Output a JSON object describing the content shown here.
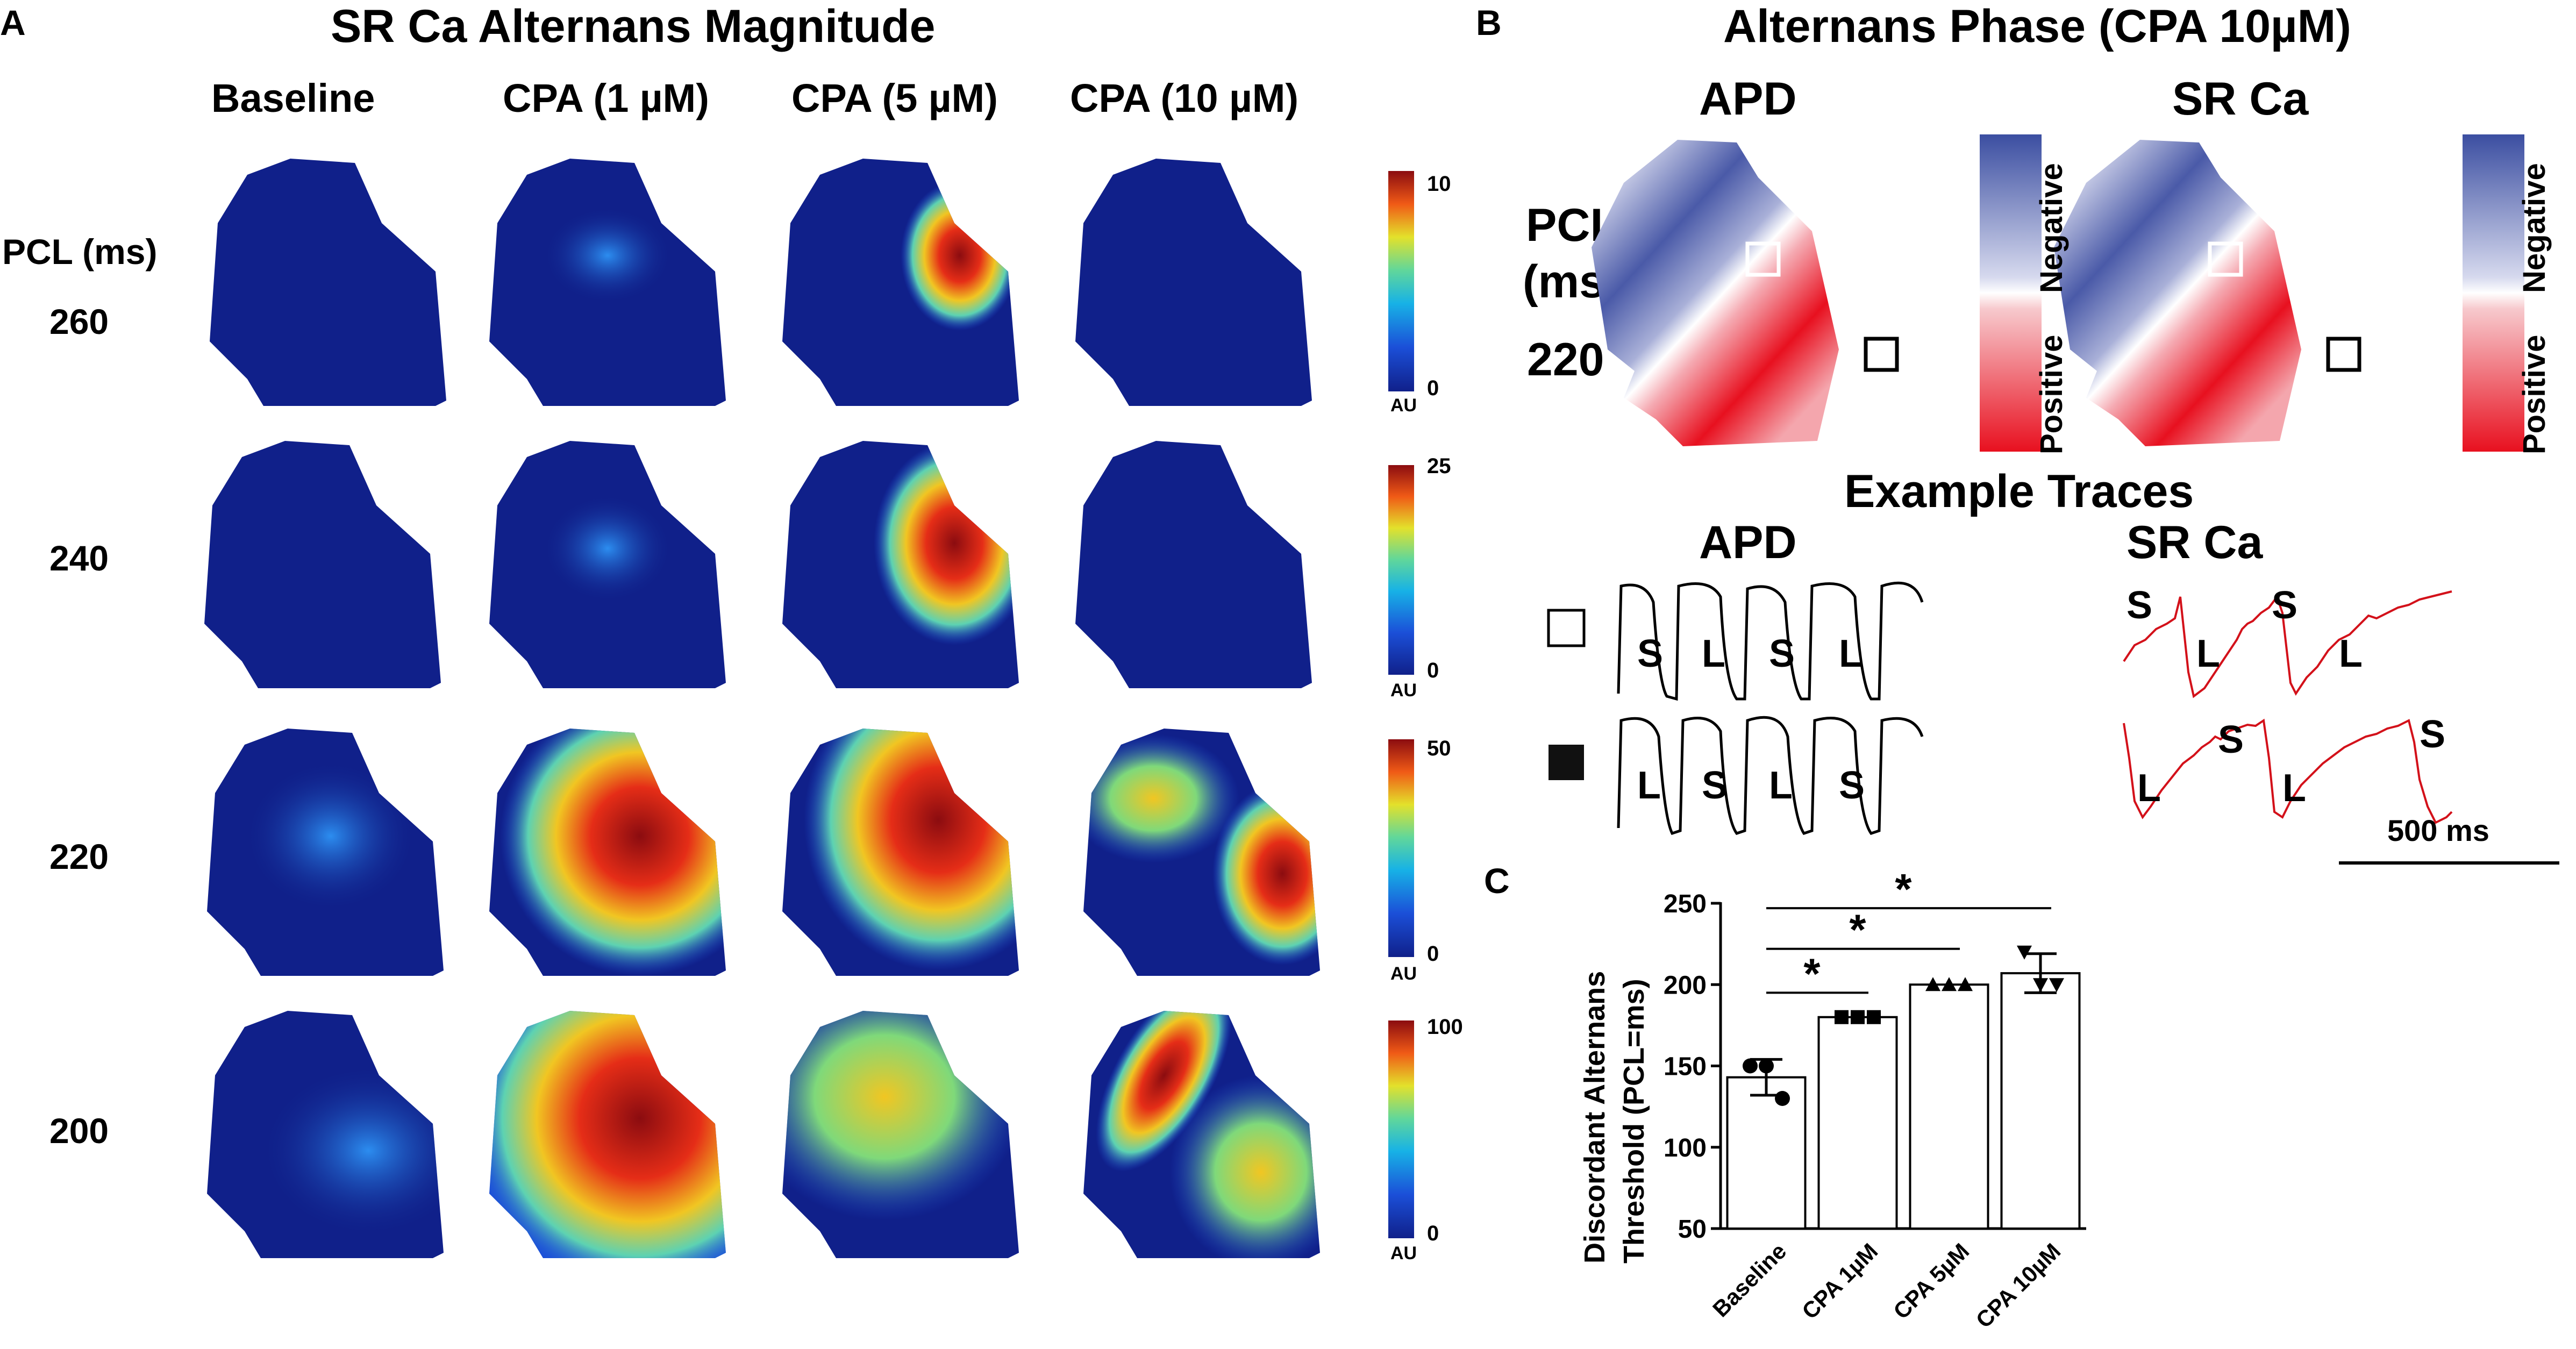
{
  "panel_a": {
    "letter": "A",
    "title": "SR Ca Alternans Magnitude",
    "columns": [
      "Baseline",
      "CPA (1 µM)",
      "CPA (5 µM)",
      "CPA (10 µM)"
    ],
    "row_header": "PCL (ms)",
    "rows": [
      "260",
      "240",
      "220",
      "200"
    ],
    "colorbars": [
      {
        "max": "10",
        "min": "0",
        "unit": "AU"
      },
      {
        "max": "25",
        "min": "0",
        "unit": "AU"
      },
      {
        "max": "50",
        "min": "0",
        "unit": "AU"
      },
      {
        "max": "100",
        "min": "0",
        "unit": "AU"
      }
    ]
  },
  "panel_b": {
    "letter": "B",
    "title": "Alternans Phase (CPA 10µM)",
    "map_titles": [
      "APD",
      "SR Ca"
    ],
    "pcl_line1": "PCL",
    "pcl_line2": "(ms)",
    "pcl_value": "220",
    "legend_negative": "Negative",
    "legend_positive": "Positive",
    "traces_title": "Example Traces",
    "apd_label": "APD",
    "srca_label": "SR Ca",
    "apd_open": [
      "S",
      "L",
      "S",
      "L"
    ],
    "apd_filled": [
      "L",
      "S",
      "L",
      "S"
    ],
    "srca_open": [
      "S",
      "L",
      "S",
      "L"
    ],
    "srca_filled": [
      "L",
      "S",
      "L",
      "S"
    ],
    "scale_bar": "500 ms"
  },
  "panel_c": {
    "letter": "C",
    "chart_data": {
      "type": "bar",
      "ylabel_line1": "Discordant Alternans",
      "ylabel_line2": "Threshold (PCL=ms)",
      "categories": [
        "Baseline",
        "CPA 1µM",
        "CPA 5µM",
        "CPA 10µM"
      ],
      "values": [
        143,
        180,
        200,
        207
      ],
      "errors": [
        11,
        0,
        0,
        12
      ],
      "points": [
        [
          150,
          150,
          130
        ],
        [
          180,
          180,
          180
        ],
        [
          200,
          200,
          200
        ],
        [
          220,
          200,
          200
        ]
      ],
      "ylim": [
        50,
        250
      ],
      "yticks": [
        "50",
        "100",
        "150",
        "200",
        "250"
      ],
      "significance": "*"
    }
  }
}
